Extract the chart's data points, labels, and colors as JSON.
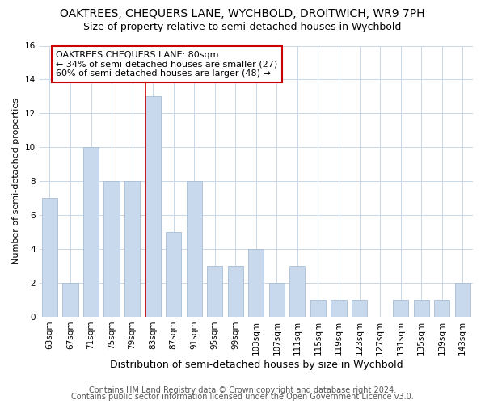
{
  "title": "OAKTREES, CHEQUERS LANE, WYCHBOLD, DROITWICH, WR9 7PH",
  "subtitle": "Size of property relative to semi-detached houses in Wychbold",
  "xlabel": "Distribution of semi-detached houses by size in Wychbold",
  "ylabel": "Number of semi-detached properties",
  "categories": [
    "63sqm",
    "67sqm",
    "71sqm",
    "75sqm",
    "79sqm",
    "83sqm",
    "87sqm",
    "91sqm",
    "95sqm",
    "99sqm",
    "103sqm",
    "107sqm",
    "111sqm",
    "115sqm",
    "119sqm",
    "123sqm",
    "127sqm",
    "131sqm",
    "135sqm",
    "139sqm",
    "143sqm"
  ],
  "values": [
    7,
    2,
    10,
    8,
    8,
    13,
    5,
    8,
    3,
    3,
    4,
    2,
    3,
    1,
    1,
    1,
    0,
    1,
    1,
    1,
    2
  ],
  "bar_color": "#c9d9ed",
  "bar_edge_color": "#a8bdd4",
  "redline_color": "#cc0000",
  "annotation_box_color": "#cc0000",
  "ylim": [
    0,
    16
  ],
  "yticks": [
    0,
    2,
    4,
    6,
    8,
    10,
    12,
    14,
    16
  ],
  "property_label": "OAKTREES CHEQUERS LANE: 80sqm",
  "smaller_pct": 34,
  "smaller_count": 27,
  "larger_pct": 60,
  "larger_count": 48,
  "footnote1": "Contains HM Land Registry data © Crown copyright and database right 2024.",
  "footnote2": "Contains public sector information licensed under the Open Government Licence v3.0.",
  "title_fontsize": 10,
  "subtitle_fontsize": 9,
  "axis_fontsize": 8,
  "tick_fontsize": 7.5,
  "annotation_fontsize": 8,
  "xlabel_fontsize": 9,
  "footnote_fontsize": 7
}
